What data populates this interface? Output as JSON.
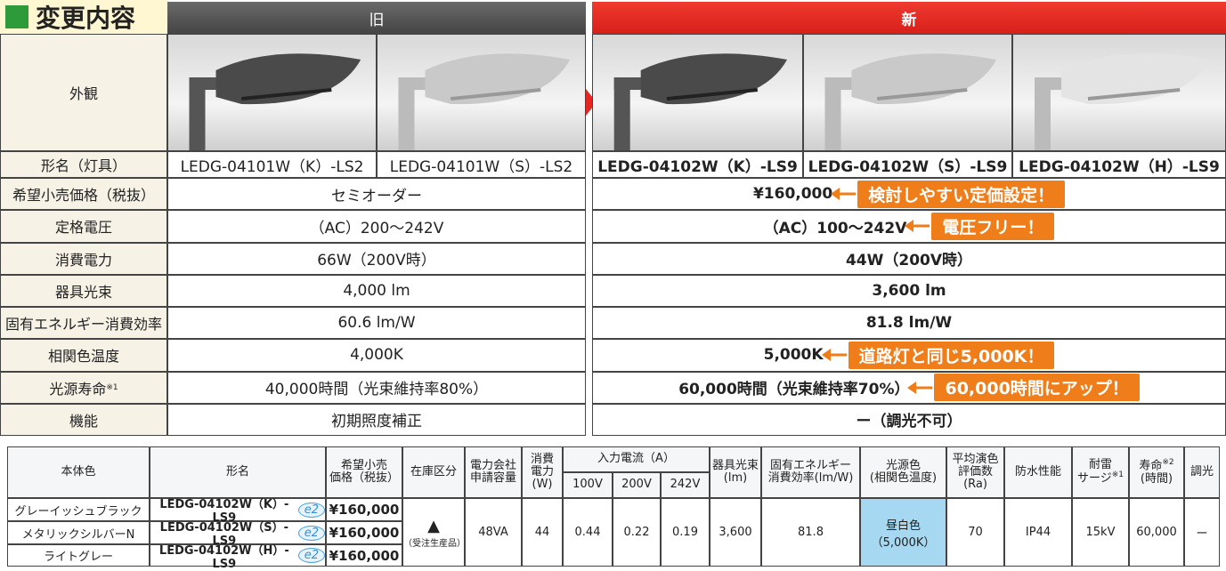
{
  "header": {
    "title": "変更内容",
    "old_label": "旧",
    "new_label": "新"
  },
  "comparison": {
    "appearance_label": "外観",
    "model_label": "形名（灯具）",
    "old_models": [
      "LEDG-04101W（K）-LS2",
      "LEDG-04101W（S）-LS2"
    ],
    "new_models": [
      "LEDG-04102W（K）-LS9",
      "LEDG-04102W（S）-LS9",
      "LEDG-04102W（H）-LS9"
    ],
    "rows": [
      {
        "label": "希望小売価格（税抜）",
        "old": "セミオーダー",
        "new": "¥160,000",
        "callout": "検討しやすい定価設定！"
      },
      {
        "label": "定格電圧",
        "old": "（AC）200～242V",
        "new": "（AC）100～242V",
        "callout": "電圧フリー！"
      },
      {
        "label": "消費電力",
        "old": "66W（200V時）",
        "new": "44W（200V時）"
      },
      {
        "label": "器具光束",
        "old": "4,000 lm",
        "new": "3,600 lm"
      },
      {
        "label": "固有エネルギー消費効率",
        "old": "60.6 lm/W",
        "new": "81.8 lm/W"
      },
      {
        "label": "相関色温度",
        "old": "4,000K",
        "new": "5,000K",
        "callout": "道路灯と同じ5,000K！"
      },
      {
        "label": "光源寿命",
        "note": "※1",
        "old": "40,000時間（光束維持率80%）",
        "new": "60,000時間（光束維持率70%）",
        "callout": "60,000時間にアップ！"
      },
      {
        "label": "機能",
        "old": "初期照度補正",
        "new": "ー（調光不可）"
      }
    ]
  },
  "spec_table": {
    "headers": [
      {
        "text": "本体色"
      },
      {
        "text": "形名"
      },
      {
        "text": "希望小売\n価格（税抜）"
      },
      {
        "text": "在庫区分"
      },
      {
        "text": "電力会社\n申請容量"
      },
      {
        "text": "消費\n電力(W)"
      },
      {
        "text": "器具光束\n(lm)"
      },
      {
        "text": "固有エネルギー\n消費効率(lm/W)"
      },
      {
        "text": "光源色\n(相関色温度)"
      },
      {
        "text": "平均演色\n評価数(Ra)"
      },
      {
        "text": "防水性能"
      },
      {
        "text": "耐雷\nサージ",
        "note": "※1"
      },
      {
        "text": "寿命",
        "note": "※2",
        "sub": "(時間)"
      },
      {
        "text": "調光"
      }
    ],
    "current_header": {
      "text": "入力電流（A）",
      "voltages": [
        "100V",
        "200V",
        "242V"
      ]
    },
    "rows": [
      {
        "color": "グレーイッシュブラック",
        "model": "LEDG-04102W（K）-LS9",
        "badge": "e2",
        "price": "¥160,000"
      },
      {
        "color": "メタリックシルバーN",
        "model": "LEDG-04102W（S）-LS9",
        "badge": "e2",
        "price": "¥160,000"
      },
      {
        "color": "ライトグレー",
        "model": "LEDG-04102W（H）-LS9",
        "badge": "e2",
        "price": "¥160,000"
      }
    ],
    "shared": {
      "stock": "▲",
      "stock_note": "（受注生産品）",
      "capacity": "48VA",
      "power": "44",
      "currents": [
        "0.44",
        "0.22",
        "0.19"
      ],
      "flux": "3,600",
      "efficiency": "81.8",
      "light_color": "昼白色\n（5,000K）",
      "ra": "70",
      "waterproof": "IP44",
      "surge": "15kV",
      "life": "60,000",
      "dimming": "ー"
    }
  }
}
